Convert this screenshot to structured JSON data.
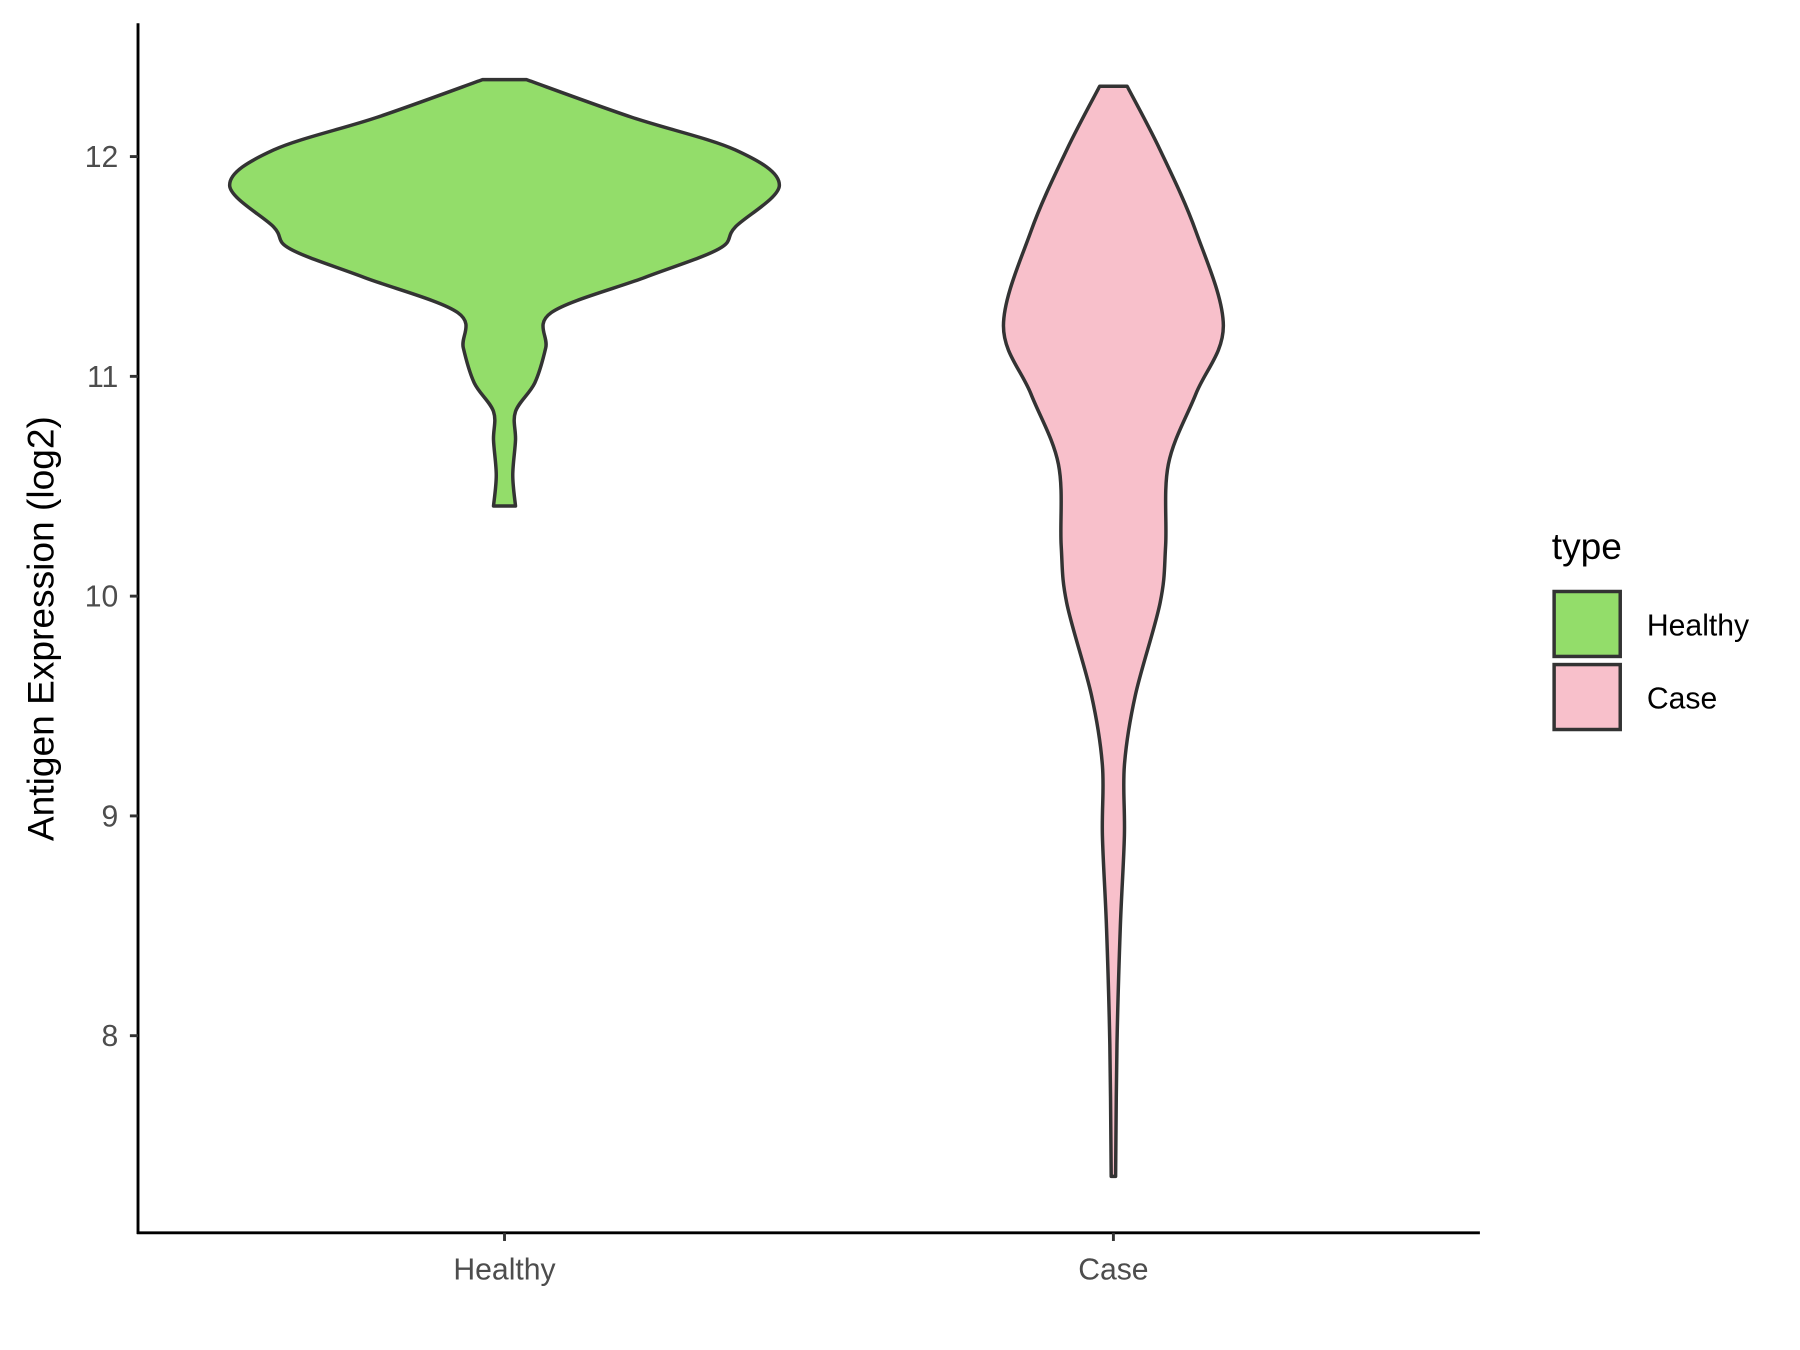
{
  "chart_data": {
    "type": "violin",
    "title": "",
    "xlabel": "",
    "ylabel": "Antigen Expression (log2)",
    "categories": [
      "Healthy",
      "Case"
    ],
    "yticks": [
      8,
      9,
      10,
      11,
      12
    ],
    "ylim": [
      7.1,
      12.6
    ],
    "grid": false,
    "legend": {
      "title": "type",
      "position": "right",
      "entries": [
        "Healthy",
        "Case"
      ]
    },
    "series": [
      {
        "name": "Healthy",
        "color": "#93DD6A",
        "range": [
          10.41,
          12.35
        ],
        "density_profile": {
          "values": [
            12.35,
            12.18,
            12.03,
            11.87,
            11.68,
            11.58,
            11.45,
            11.29,
            11.13,
            10.97,
            10.84,
            10.71,
            10.55,
            10.41
          ],
          "relative_width": [
            0.08,
            0.46,
            0.84,
            1.0,
            0.84,
            0.78,
            0.51,
            0.17,
            0.15,
            0.11,
            0.04,
            0.04,
            0.03,
            0.04
          ]
        }
      },
      {
        "name": "Case",
        "color": "#F8C0CB",
        "range": [
          7.36,
          12.32
        ],
        "density_profile": {
          "values": [
            12.32,
            12.03,
            11.66,
            11.23,
            10.92,
            10.6,
            10.23,
            9.97,
            9.55,
            9.23,
            8.91,
            8.49,
            7.96,
            7.36
          ],
          "relative_width": [
            0.05,
            0.17,
            0.3,
            0.4,
            0.3,
            0.2,
            0.19,
            0.17,
            0.08,
            0.04,
            0.04,
            0.025,
            0.013,
            0.008
          ]
        }
      }
    ],
    "outline_color": "#333333"
  }
}
